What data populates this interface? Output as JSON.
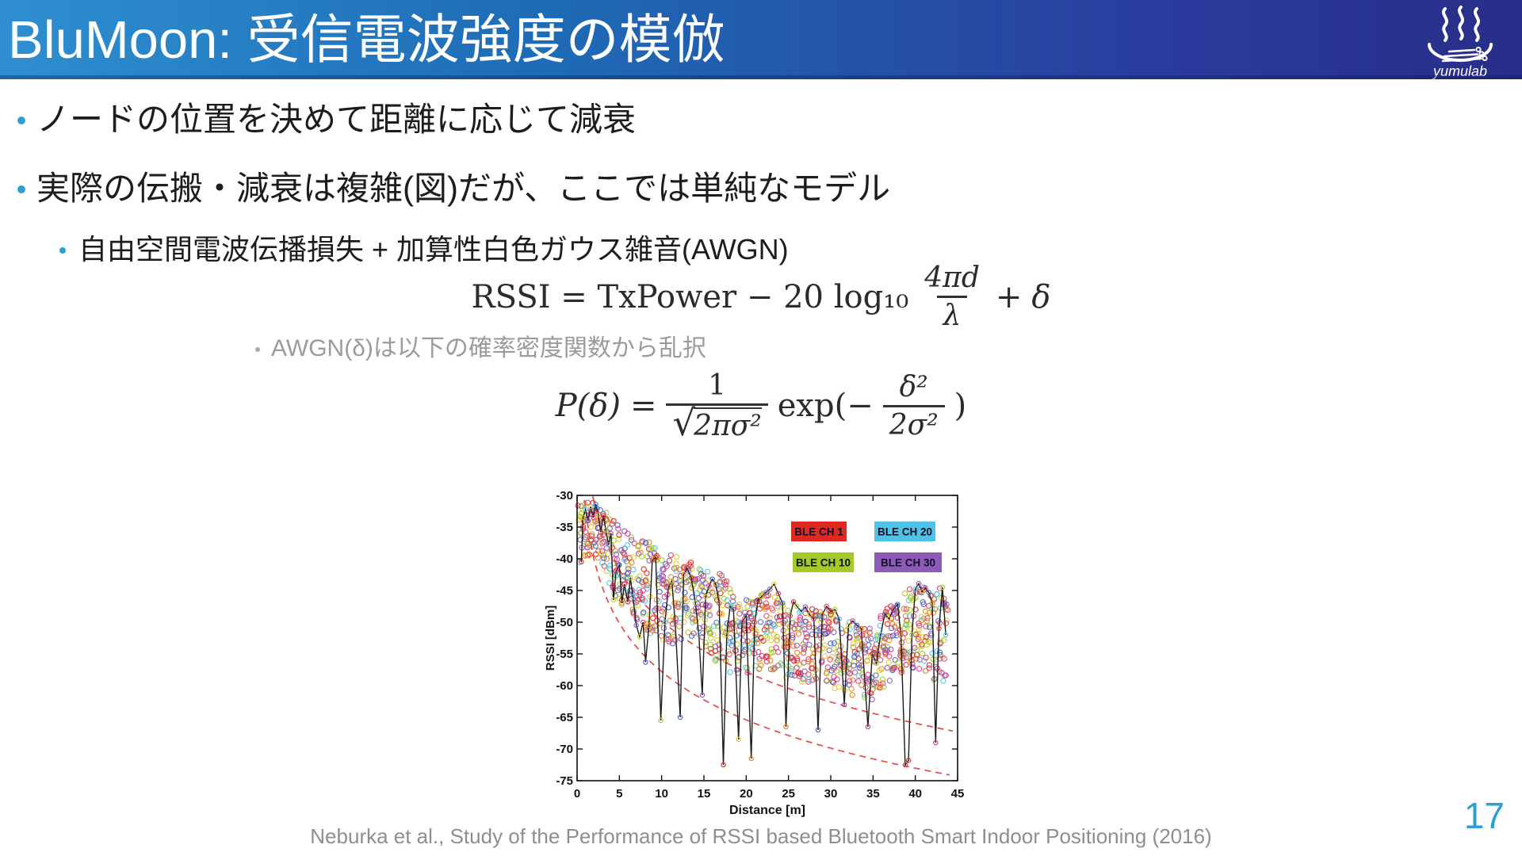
{
  "header": {
    "title": "BluMoon: 受信電波強度の模倣",
    "logo_label": "yumulab"
  },
  "bullets": [
    {
      "level": 1,
      "text": "ノードの位置を決めて距離に応じて減衰"
    },
    {
      "level": 1,
      "text": "実際の伝搬・減衰は複雑(図)だが、ここでは単純なモデル"
    },
    {
      "level": 2,
      "text": "自由空間電波伝播損失 + 加算性白色ガウス雑音(AWGN)"
    },
    {
      "level": 3,
      "text": "AWGN(δ)は以下の確率密度関数から乱択"
    }
  ],
  "formulas": {
    "rssi": {
      "prefix": "RSSI = TxPower − 20 log₁₀",
      "frac_num": "4πd",
      "frac_den": "λ",
      "plus": "+",
      "delta": "δ"
    },
    "gauss": {
      "lhs": "P(δ)",
      "eq": "=",
      "frac1_num": "1",
      "frac1_den_sqrt": "√",
      "frac1_den_rad": "2πσ²",
      "exp": "exp(−",
      "frac2_num": "δ²",
      "frac2_den": "2σ²",
      "close": ")"
    }
  },
  "footer": {
    "citation": "Neburka et al., Study of the Performance of RSSI based Bluetooth Smart Indoor Positioning (2016)",
    "page_number": "17"
  },
  "chart_data": {
    "type": "scatter",
    "title": "",
    "xlabel": "Distance [m]",
    "ylabel": "RSSI [dBm]",
    "xlim": [
      0,
      45
    ],
    "ylim": [
      -75,
      -30
    ],
    "xticks": [
      0,
      5,
      10,
      15,
      20,
      25,
      30,
      35,
      40,
      45
    ],
    "yticks": [
      -75,
      -70,
      -65,
      -60,
      -55,
      -50,
      -45,
      -40,
      -35,
      -30
    ],
    "grid": false,
    "legend_position": "upper-right-inside",
    "legend": [
      {
        "label": "BLE CH 1",
        "color": "#e02820"
      },
      {
        "label": "BLE CH 20",
        "color": "#4fc3e6"
      },
      {
        "label": "BLE CH 10",
        "color": "#a2cb2a"
      },
      {
        "label": "BLE CH 30",
        "color": "#8d5bb5"
      }
    ],
    "scatter_palette": [
      "#e02820",
      "#a2cb2a",
      "#4fc3e6",
      "#8d5bb5",
      "#e8c820",
      "#e0388a",
      "#4664c8",
      "#e8821e",
      "#d04858"
    ],
    "scatter_band": {
      "seed": 7,
      "x_start": 0.35,
      "x_end": 43.65,
      "x_step": 0.42,
      "points_per_column": 11,
      "envelope_x_step": 1,
      "upper_envelope": [
        -31,
        -31,
        -31,
        -32,
        -33.5,
        -34,
        -36,
        -37,
        -36,
        -38,
        -39,
        -38.5,
        -40,
        -40,
        -41,
        -42,
        -41,
        -42.5,
        -44,
        -45.5,
        -46,
        -46.5,
        -45.5,
        -44.5,
        -46.5,
        -46.5,
        -47.5,
        -47.5,
        -48,
        -48.5,
        -48,
        -49.5,
        -49.5,
        -50,
        -51,
        -51,
        -48.5,
        -47.5,
        -47,
        -44.5,
        -44,
        -44.5,
        -45,
        -44.5,
        -46
      ],
      "lower_envelope": [
        -41,
        -40,
        -39,
        -41,
        -46,
        -47,
        -48,
        -50,
        -52,
        -52,
        -53,
        -54,
        -53,
        -52,
        -53,
        -54,
        -56,
        -57,
        -58,
        -58,
        -59,
        -58,
        -57,
        -57.5,
        -58,
        -59,
        -60,
        -60,
        -59,
        -59.5,
        -60,
        -61,
        -61.5,
        -62,
        -62,
        -62.5,
        -61,
        -60,
        -59,
        -57,
        -57.5,
        -58,
        -59,
        -60,
        -59
      ]
    },
    "measured_line": {
      "color": "#1c1c1c",
      "points": [
        [
          0.5,
          -40.5
        ],
        [
          0.7,
          -33.5
        ],
        [
          1,
          -32.2
        ],
        [
          1.3,
          -34
        ],
        [
          1.6,
          -31.8
        ],
        [
          1.9,
          -33.5
        ],
        [
          2.2,
          -31.4
        ],
        [
          2.5,
          -33
        ],
        [
          2.8,
          -35.8
        ],
        [
          3.1,
          -33.2
        ],
        [
          3.4,
          -35.5
        ],
        [
          3.7,
          -37.8
        ],
        [
          4,
          -36
        ],
        [
          4.3,
          -46.5
        ],
        [
          4.6,
          -42
        ],
        [
          5,
          -41
        ],
        [
          5.3,
          -47
        ],
        [
          5.6,
          -44
        ],
        [
          6,
          -46.8
        ],
        [
          6.3,
          -43
        ],
        [
          6.6,
          -46
        ],
        [
          7,
          -50.5
        ],
        [
          7.4,
          -52.3
        ],
        [
          7.8,
          -50
        ],
        [
          8.1,
          -56.3
        ],
        [
          8.5,
          -50.5
        ],
        [
          8.9,
          -40.2
        ],
        [
          9.3,
          -39.8
        ],
        [
          9.9,
          -65.5
        ],
        [
          10.4,
          -50
        ],
        [
          10.8,
          -44.5
        ],
        [
          11.2,
          -43.5
        ],
        [
          11.6,
          -50
        ],
        [
          12.2,
          -65
        ],
        [
          12.6,
          -42.5
        ],
        [
          13,
          -41.5
        ],
        [
          13.5,
          -43
        ],
        [
          14,
          -47
        ],
        [
          14.4,
          -52
        ],
        [
          14.8,
          -61.5
        ],
        [
          15.2,
          -46
        ],
        [
          15.6,
          -44.3
        ],
        [
          16,
          -43.2
        ],
        [
          16.4,
          -44
        ],
        [
          16.8,
          -47
        ],
        [
          17.3,
          -72.5
        ],
        [
          17.7,
          -52
        ],
        [
          18.1,
          -47.5
        ],
        [
          18.5,
          -48
        ],
        [
          19.1,
          -68.5
        ],
        [
          19.5,
          -50
        ],
        [
          20,
          -49
        ],
        [
          20.6,
          -71.5
        ],
        [
          21,
          -50
        ],
        [
          21.4,
          -46.5
        ],
        [
          21.8,
          -46
        ],
        [
          22.3,
          -45.3
        ],
        [
          22.8,
          -44.8
        ],
        [
          23.3,
          -44
        ],
        [
          23.8,
          -45.5
        ],
        [
          24.3,
          -47
        ],
        [
          24.7,
          -66.5
        ],
        [
          25.2,
          -49
        ],
        [
          25.6,
          -46.8
        ],
        [
          26,
          -47.5
        ],
        [
          26.5,
          -48.3
        ],
        [
          27,
          -47.6
        ],
        [
          27.5,
          -48.8
        ],
        [
          28,
          -49.5
        ],
        [
          28.5,
          -67
        ],
        [
          29,
          -48.8
        ],
        [
          29.5,
          -47.5
        ],
        [
          30,
          -48.3
        ],
        [
          30.5,
          -48
        ],
        [
          31,
          -49.5
        ],
        [
          31.6,
          -63
        ],
        [
          32.1,
          -50.5
        ],
        [
          32.6,
          -49.8
        ],
        [
          33.1,
          -50.5
        ],
        [
          33.6,
          -51
        ],
        [
          34.4,
          -66.5
        ],
        [
          34.9,
          -55
        ],
        [
          35.4,
          -56.5
        ],
        [
          35.9,
          -52
        ],
        [
          36.4,
          -48.7
        ],
        [
          36.9,
          -49.5
        ],
        [
          37.4,
          -48
        ],
        [
          37.9,
          -47.2
        ],
        [
          38.3,
          -52
        ],
        [
          38.8,
          -72.5
        ],
        [
          39.2,
          -71.8
        ],
        [
          39.6,
          -52
        ],
        [
          40,
          -44.8
        ],
        [
          40.4,
          -43.9
        ],
        [
          40.8,
          -45.2
        ],
        [
          41.2,
          -44.6
        ],
        [
          41.6,
          -45.3
        ],
        [
          42,
          -47
        ],
        [
          42.4,
          -69
        ],
        [
          42.8,
          -51
        ],
        [
          43.2,
          -44.5
        ],
        [
          43.6,
          -52
        ]
      ]
    },
    "model_curves": [
      {
        "name": "path-loss-model-upper",
        "color": "#e34040",
        "style": "dashed",
        "rssi_at_1m": -23,
        "slope_db_per_decade": 26.8,
        "x_range": [
          1.85,
          44.6
        ]
      },
      {
        "name": "path-loss-model-lower",
        "color": "#e34040",
        "style": "dashed",
        "rssi_at_1m": -32.5,
        "slope_db_per_decade": 25.3,
        "x_range": [
          0.85,
          44.6
        ]
      }
    ]
  }
}
